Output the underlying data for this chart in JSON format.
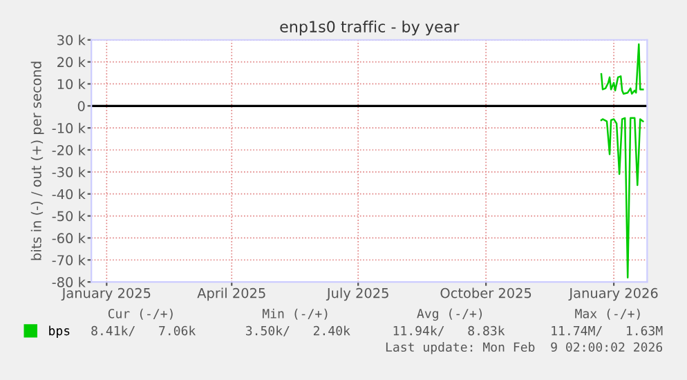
{
  "chart_data": {
    "type": "line",
    "title": "enp1s0 traffic - by year",
    "ylabel": "bits in (-) / out (+) per second",
    "xlim": [
      "2025-01-05",
      "2026-02-09"
    ],
    "xticks": [
      {
        "value": "2025-01-16",
        "label": "January 2025"
      },
      {
        "value": "2025-04-16",
        "label": "April 2025"
      },
      {
        "value": "2025-07-16",
        "label": "July 2025"
      },
      {
        "value": "2025-10-16",
        "label": "October 2025"
      },
      {
        "value": "2026-01-16",
        "label": "January 2026"
      }
    ],
    "ylim": [
      -80000,
      30000
    ],
    "yticks": [
      {
        "value": -80000,
        "label": "-80 k"
      },
      {
        "value": -70000,
        "label": "-70 k"
      },
      {
        "value": -60000,
        "label": "-60 k"
      },
      {
        "value": -50000,
        "label": "-50 k"
      },
      {
        "value": -40000,
        "label": "-40 k"
      },
      {
        "value": -30000,
        "label": "-30 k"
      },
      {
        "value": -20000,
        "label": "-20 k"
      },
      {
        "value": -10000,
        "label": "-10 k"
      },
      0,
      {
        "value": 10000,
        "label": "10 k"
      },
      {
        "value": 20000,
        "label": "20 k"
      },
      {
        "value": 30000,
        "label": "30 k"
      }
    ],
    "grid": true,
    "legend": "bottom left",
    "line_style": "solid",
    "ref_lines": [
      {
        "axis": "y",
        "value": 0,
        "color": "#000000"
      }
    ],
    "series": [
      {
        "name": "bps",
        "color": "#00cc00",
        "x": [
          "2026-01-07",
          "2026-01-08",
          "2026-01-11",
          "2026-01-13",
          "2026-01-14",
          "2026-01-16",
          "2026-01-18",
          "2026-01-20",
          "2026-01-22",
          "2026-01-24",
          "2026-01-26",
          "2026-01-28",
          "2026-01-31",
          "2026-02-02",
          "2026-02-04",
          "2026-02-06"
        ],
        "values": [
          -6500,
          -6000,
          -7000,
          -22000,
          -6500,
          -6000,
          -8000,
          -31000,
          -6000,
          -5500,
          -78000,
          -5500,
          -5500,
          -36000,
          -6000,
          -7000
        ]
      },
      {
        "color": "#00cc00",
        "x": [
          "2026-01-07",
          "2026-01-08",
          "2026-01-10",
          "2026-01-12",
          "2026-01-13",
          "2026-01-14",
          "2026-01-16",
          "2026-01-17",
          "2026-01-19",
          "2026-01-21",
          "2026-01-22",
          "2026-01-23",
          "2026-01-26",
          "2026-01-28",
          "2026-01-29",
          "2026-01-31",
          "2026-02-01",
          "2026-02-03",
          "2026-02-04",
          "2026-02-06"
        ],
        "values": [
          14500,
          7500,
          8000,
          10500,
          13000,
          7500,
          10500,
          7000,
          13000,
          13500,
          7000,
          5500,
          6000,
          8000,
          5500,
          7000,
          6000,
          28000,
          7500,
          7500
        ]
      }
    ],
    "annotations": [
      "Cur (-/+)",
      "Min (-/+)",
      "Avg (-/+)",
      "Max (-/+)",
      "8.41k/   7.06k",
      "3.50k/   2.40k",
      "11.94k/   8.83k",
      "11.74M/   1.63M",
      "Last update: Mon Feb  9 02:00:02 2026"
    ]
  }
}
